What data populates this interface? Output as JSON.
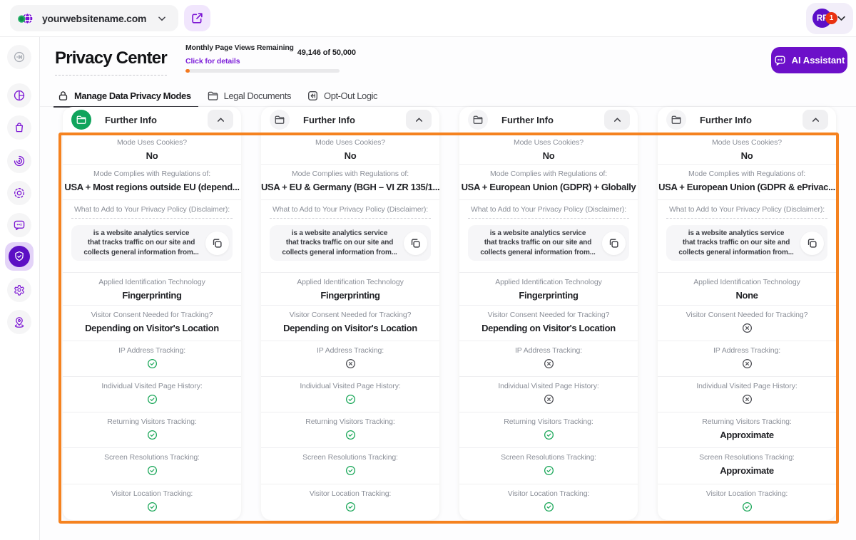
{
  "accent_colors": {
    "purple": "#6c10c9",
    "green": "#10a45c",
    "orange": "#f5821f",
    "red_badge": "#e93110",
    "check_green": "#18a657"
  },
  "topbar": {
    "website_name": "yourwebsitename.com",
    "avatar_initials": "RF",
    "notification_count": "1"
  },
  "sidebar": {
    "items": [
      "expand",
      "dashboard",
      "company",
      "behaviour",
      "visitors",
      "feedback",
      "privacy",
      "settings",
      "location"
    ],
    "active": "privacy"
  },
  "header": {
    "title": "Privacy Center",
    "usage_label": "Monthly Page Views Remaining",
    "usage_value": "49,146 of 50,000",
    "usage_link": "Click for details",
    "usage_fill_percent": 3,
    "ai_button_label": "AI Assistant"
  },
  "tabs": [
    {
      "label": "Manage Data Privacy Modes",
      "icon": "lock-icon",
      "active": true
    },
    {
      "label": "Legal Documents",
      "icon": "folder-icon",
      "active": false
    },
    {
      "label": "Opt-Out Logic",
      "icon": "opt-out-icon",
      "active": false
    }
  ],
  "columns": [
    {
      "title": "Further Info",
      "folder_style": "green",
      "rows": [
        {
          "type": "text",
          "label": "Mode Uses Cookies?",
          "value": "No"
        },
        {
          "type": "text",
          "label": "Mode Complies with Regulations of:",
          "value": "USA + Most regions outside EU (depend..."
        },
        {
          "type": "disclaimer",
          "label": "What to Add to Your Privacy Policy (Disclaimer):",
          "lines": [
            "is a website analytics service",
            "that tracks traffic on our site and",
            "collects general information from..."
          ]
        },
        {
          "type": "text",
          "label": "Applied Identification Technology",
          "value": "Fingerprinting"
        },
        {
          "type": "text",
          "label": "Visitor Consent Needed for Tracking?",
          "value": "Depending on Visitor's Location"
        },
        {
          "type": "icon",
          "label": "IP Address Tracking:",
          "value": "check"
        },
        {
          "type": "icon",
          "label": "Individual Visited Page History:",
          "value": "check"
        },
        {
          "type": "icon",
          "label": "Returning Visitors Tracking:",
          "value": "check"
        },
        {
          "type": "icon",
          "label": "Screen Resolutions Tracking:",
          "value": "check"
        },
        {
          "type": "icon",
          "label": "Visitor Location Tracking:",
          "value": "check"
        }
      ]
    },
    {
      "title": "Further Info",
      "folder_style": "grey",
      "rows": [
        {
          "type": "text",
          "label": "Mode Uses Cookies?",
          "value": "No"
        },
        {
          "type": "text",
          "label": "Mode Complies with Regulations of:",
          "value": "USA + EU & Germany (BGH – VI ZR 135/1..."
        },
        {
          "type": "disclaimer",
          "label": "What to Add to Your Privacy Policy (Disclaimer):",
          "lines": [
            "is a website analytics service",
            "that tracks traffic on our site and",
            "collects general information from..."
          ]
        },
        {
          "type": "text",
          "label": "Applied Identification Technology",
          "value": "Fingerprinting"
        },
        {
          "type": "text",
          "label": "Visitor Consent Needed for Tracking?",
          "value": "Depending on Visitor's Location"
        },
        {
          "type": "icon",
          "label": "IP Address Tracking:",
          "value": "cross"
        },
        {
          "type": "icon",
          "label": "Individual Visited Page History:",
          "value": "check"
        },
        {
          "type": "icon",
          "label": "Returning Visitors Tracking:",
          "value": "check"
        },
        {
          "type": "icon",
          "label": "Screen Resolutions Tracking:",
          "value": "check"
        },
        {
          "type": "icon",
          "label": "Visitor Location Tracking:",
          "value": "check"
        }
      ]
    },
    {
      "title": "Further Info",
      "folder_style": "grey",
      "rows": [
        {
          "type": "text",
          "label": "Mode Uses Cookies?",
          "value": "No"
        },
        {
          "type": "text",
          "label": "Mode Complies with Regulations of:",
          "value": "USA + European Union (GDPR) + Globally"
        },
        {
          "type": "disclaimer",
          "label": "What to Add to Your Privacy Policy (Disclaimer):",
          "lines": [
            "is a website analytics service",
            "that tracks traffic on our site and",
            "collects general information from..."
          ]
        },
        {
          "type": "text",
          "label": "Applied Identification Technology",
          "value": "Fingerprinting"
        },
        {
          "type": "text",
          "label": "Visitor Consent Needed for Tracking?",
          "value": "Depending on Visitor's Location"
        },
        {
          "type": "icon",
          "label": "IP Address Tracking:",
          "value": "cross"
        },
        {
          "type": "icon",
          "label": "Individual Visited Page History:",
          "value": "cross"
        },
        {
          "type": "icon",
          "label": "Returning Visitors Tracking:",
          "value": "check"
        },
        {
          "type": "icon",
          "label": "Screen Resolutions Tracking:",
          "value": "check"
        },
        {
          "type": "icon",
          "label": "Visitor Location Tracking:",
          "value": "check"
        }
      ]
    },
    {
      "title": "Further Info",
      "folder_style": "grey",
      "rows": [
        {
          "type": "text",
          "label": "Mode Uses Cookies?",
          "value": "No"
        },
        {
          "type": "text",
          "label": "Mode Complies with Regulations of:",
          "value": "USA + European Union (GDPR & ePrivac..."
        },
        {
          "type": "disclaimer",
          "label": "What to Add to Your Privacy Policy (Disclaimer):",
          "lines": [
            "is a website analytics service",
            "that tracks traffic on our site and",
            "collects general information from..."
          ]
        },
        {
          "type": "text",
          "label": "Applied Identification Technology",
          "value": "None"
        },
        {
          "type": "icon",
          "label": "Visitor Consent Needed for Tracking?",
          "value": "cross"
        },
        {
          "type": "icon",
          "label": "IP Address Tracking:",
          "value": "cross"
        },
        {
          "type": "icon",
          "label": "Individual Visited Page History:",
          "value": "cross"
        },
        {
          "type": "text",
          "label": "Returning Visitors Tracking:",
          "value": "Approximate"
        },
        {
          "type": "text",
          "label": "Screen Resolutions Tracking:",
          "value": "Approximate"
        },
        {
          "type": "icon",
          "label": "Visitor Location Tracking:",
          "value": "check"
        }
      ]
    }
  ]
}
